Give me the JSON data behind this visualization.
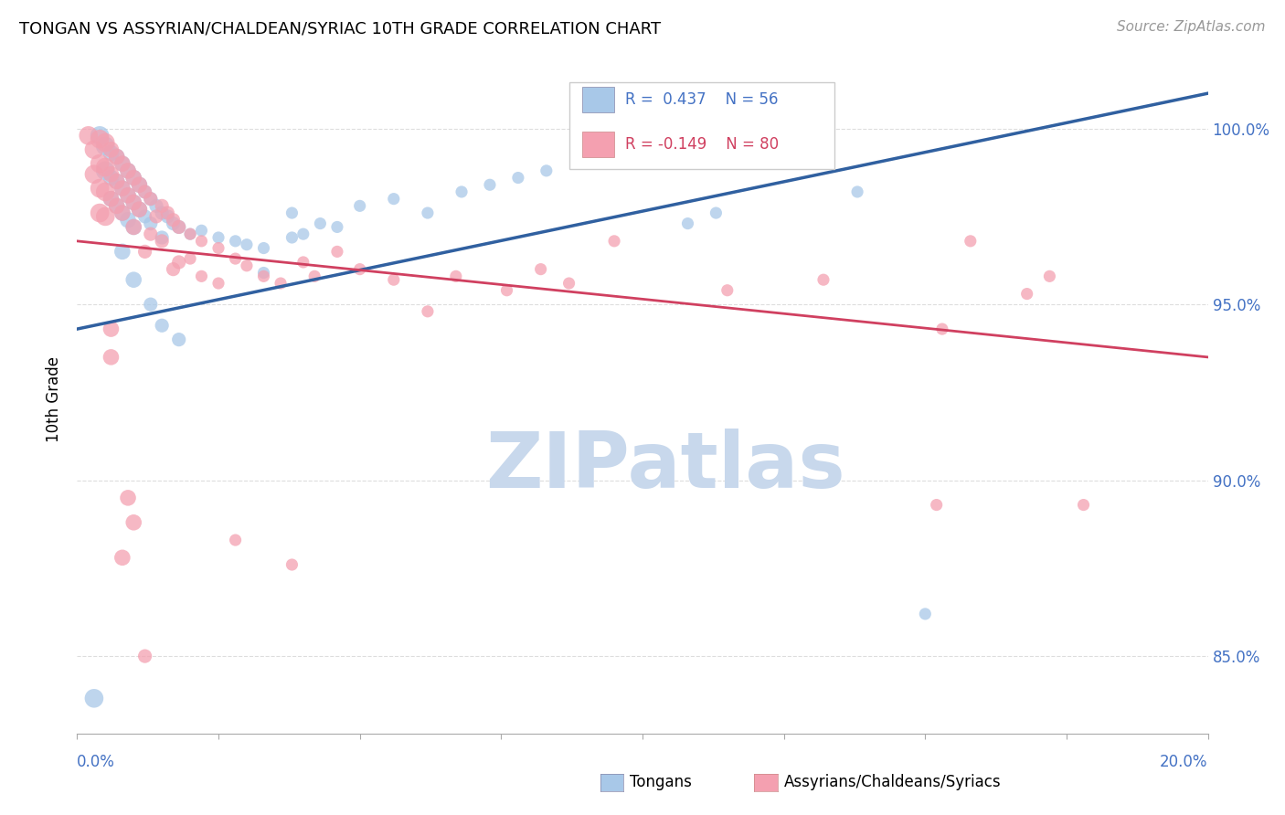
{
  "title": "TONGAN VS ASSYRIAN/CHALDEAN/SYRIAC 10TH GRADE CORRELATION CHART",
  "source": "Source: ZipAtlas.com",
  "ylabel": "10th Grade",
  "yaxis_labels": [
    "85.0%",
    "90.0%",
    "95.0%",
    "100.0%"
  ],
  "yaxis_values": [
    0.85,
    0.9,
    0.95,
    1.0
  ],
  "xlim": [
    0.0,
    0.2
  ],
  "ylim": [
    0.828,
    1.018
  ],
  "legend_blue": {
    "R": "0.437",
    "N": "56",
    "label": "Tongans"
  },
  "legend_pink": {
    "R": "-0.149",
    "N": "80",
    "label": "Assyrians/Chaldeans/Syriacs"
  },
  "blue_color": "#a8c8e8",
  "pink_color": "#f4a0b0",
  "blue_line_color": "#3060a0",
  "pink_line_color": "#d04060",
  "blue_line_y0": 0.943,
  "blue_line_y1": 1.01,
  "pink_line_y0": 0.968,
  "pink_line_y1": 0.935,
  "watermark_text": "ZIPatlas",
  "watermark_color": "#c8d8ec",
  "axis_label_color": "#4472C4",
  "grid_color": "#dddddd",
  "title_fontsize": 13,
  "source_fontsize": 11,
  "tick_label_fontsize": 12,
  "legend_fontsize": 12,
  "ylabel_fontsize": 12,
  "blue_points": [
    [
      0.004,
      0.998
    ],
    [
      0.005,
      0.995
    ],
    [
      0.005,
      0.988
    ],
    [
      0.006,
      0.993
    ],
    [
      0.006,
      0.986
    ],
    [
      0.006,
      0.98
    ],
    [
      0.007,
      0.992
    ],
    [
      0.007,
      0.985
    ],
    [
      0.007,
      0.978
    ],
    [
      0.008,
      0.99
    ],
    [
      0.008,
      0.983
    ],
    [
      0.008,
      0.976
    ],
    [
      0.009,
      0.988
    ],
    [
      0.009,
      0.981
    ],
    [
      0.009,
      0.974
    ],
    [
      0.01,
      0.986
    ],
    [
      0.01,
      0.979
    ],
    [
      0.01,
      0.972
    ],
    [
      0.011,
      0.984
    ],
    [
      0.011,
      0.977
    ],
    [
      0.012,
      0.982
    ],
    [
      0.012,
      0.975
    ],
    [
      0.013,
      0.98
    ],
    [
      0.013,
      0.973
    ],
    [
      0.014,
      0.978
    ],
    [
      0.015,
      0.976
    ],
    [
      0.015,
      0.969
    ],
    [
      0.016,
      0.975
    ],
    [
      0.017,
      0.973
    ],
    [
      0.018,
      0.972
    ],
    [
      0.02,
      0.97
    ],
    [
      0.022,
      0.971
    ],
    [
      0.025,
      0.969
    ],
    [
      0.028,
      0.968
    ],
    [
      0.03,
      0.967
    ],
    [
      0.033,
      0.966
    ],
    [
      0.033,
      0.959
    ],
    [
      0.038,
      0.976
    ],
    [
      0.038,
      0.969
    ],
    [
      0.04,
      0.97
    ],
    [
      0.043,
      0.973
    ],
    [
      0.046,
      0.972
    ],
    [
      0.05,
      0.978
    ],
    [
      0.056,
      0.98
    ],
    [
      0.062,
      0.976
    ],
    [
      0.068,
      0.982
    ],
    [
      0.073,
      0.984
    ],
    [
      0.078,
      0.986
    ],
    [
      0.083,
      0.988
    ],
    [
      0.089,
      0.99
    ],
    [
      0.108,
      0.973
    ],
    [
      0.113,
      0.976
    ],
    [
      0.138,
      0.982
    ],
    [
      0.008,
      0.965
    ],
    [
      0.01,
      0.957
    ],
    [
      0.013,
      0.95
    ],
    [
      0.015,
      0.944
    ],
    [
      0.018,
      0.94
    ],
    [
      0.15,
      0.862
    ],
    [
      0.003,
      0.838
    ]
  ],
  "pink_points": [
    [
      0.002,
      0.998
    ],
    [
      0.003,
      0.994
    ],
    [
      0.003,
      0.987
    ],
    [
      0.004,
      0.997
    ],
    [
      0.004,
      0.99
    ],
    [
      0.004,
      0.983
    ],
    [
      0.004,
      0.976
    ],
    [
      0.005,
      0.996
    ],
    [
      0.005,
      0.989
    ],
    [
      0.005,
      0.982
    ],
    [
      0.005,
      0.975
    ],
    [
      0.006,
      0.994
    ],
    [
      0.006,
      0.987
    ],
    [
      0.006,
      0.98
    ],
    [
      0.007,
      0.992
    ],
    [
      0.007,
      0.985
    ],
    [
      0.007,
      0.978
    ],
    [
      0.008,
      0.99
    ],
    [
      0.008,
      0.983
    ],
    [
      0.008,
      0.976
    ],
    [
      0.009,
      0.988
    ],
    [
      0.009,
      0.981
    ],
    [
      0.01,
      0.986
    ],
    [
      0.01,
      0.979
    ],
    [
      0.01,
      0.972
    ],
    [
      0.011,
      0.984
    ],
    [
      0.011,
      0.977
    ],
    [
      0.012,
      0.982
    ],
    [
      0.012,
      0.965
    ],
    [
      0.013,
      0.98
    ],
    [
      0.013,
      0.97
    ],
    [
      0.014,
      0.975
    ],
    [
      0.015,
      0.978
    ],
    [
      0.015,
      0.968
    ],
    [
      0.016,
      0.976
    ],
    [
      0.017,
      0.974
    ],
    [
      0.017,
      0.96
    ],
    [
      0.018,
      0.972
    ],
    [
      0.018,
      0.962
    ],
    [
      0.02,
      0.97
    ],
    [
      0.02,
      0.963
    ],
    [
      0.022,
      0.968
    ],
    [
      0.022,
      0.958
    ],
    [
      0.025,
      0.966
    ],
    [
      0.025,
      0.956
    ],
    [
      0.028,
      0.963
    ],
    [
      0.028,
      0.883
    ],
    [
      0.03,
      0.961
    ],
    [
      0.033,
      0.958
    ],
    [
      0.036,
      0.956
    ],
    [
      0.04,
      0.962
    ],
    [
      0.042,
      0.958
    ],
    [
      0.046,
      0.965
    ],
    [
      0.05,
      0.96
    ],
    [
      0.056,
      0.957
    ],
    [
      0.062,
      0.948
    ],
    [
      0.067,
      0.958
    ],
    [
      0.076,
      0.954
    ],
    [
      0.082,
      0.96
    ],
    [
      0.087,
      0.956
    ],
    [
      0.095,
      0.968
    ],
    [
      0.006,
      0.943
    ],
    [
      0.006,
      0.935
    ],
    [
      0.009,
      0.895
    ],
    [
      0.01,
      0.888
    ],
    [
      0.008,
      0.878
    ],
    [
      0.115,
      0.954
    ],
    [
      0.132,
      0.957
    ],
    [
      0.152,
      0.893
    ],
    [
      0.038,
      0.876
    ],
    [
      0.158,
      0.968
    ],
    [
      0.172,
      0.958
    ],
    [
      0.178,
      0.893
    ],
    [
      0.012,
      0.85
    ],
    [
      0.168,
      0.953
    ],
    [
      0.153,
      0.943
    ]
  ]
}
